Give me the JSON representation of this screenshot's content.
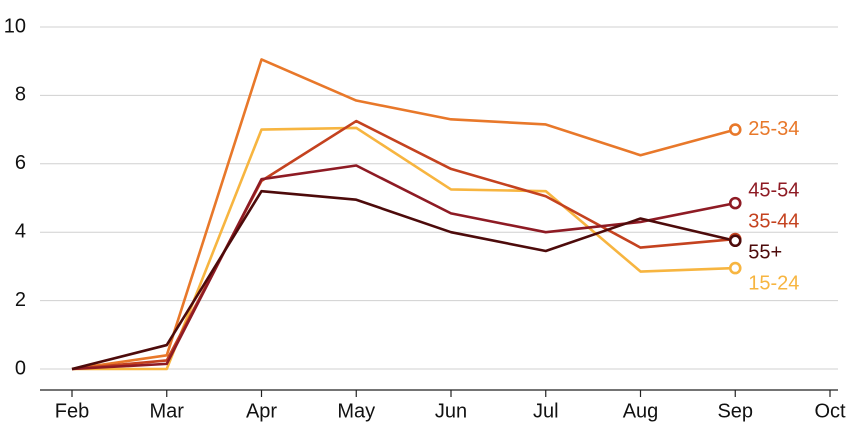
{
  "chart_data": {
    "type": "line",
    "categories": [
      "Feb",
      "Mar",
      "Apr",
      "May",
      "Jun",
      "Jul",
      "Aug",
      "Sep",
      "Oct"
    ],
    "series": [
      {
        "name": "25-34",
        "color": "#e8782a",
        "values": [
          0,
          0.4,
          9.05,
          7.85,
          7.3,
          7.15,
          6.25,
          7.0,
          null
        ]
      },
      {
        "name": "15-24",
        "color": "#f7b540",
        "values": [
          0,
          0,
          7.0,
          7.05,
          5.25,
          5.2,
          2.85,
          2.95,
          null
        ]
      },
      {
        "name": "35-44",
        "color": "#c4421f",
        "values": [
          0,
          0.25,
          5.5,
          7.25,
          5.85,
          5.05,
          3.55,
          3.8,
          null
        ]
      },
      {
        "name": "45-54",
        "color": "#8e1b24",
        "values": [
          0,
          0.15,
          5.55,
          5.95,
          4.55,
          4.0,
          4.3,
          4.85,
          null
        ]
      },
      {
        "name": "55+",
        "color": "#4d0b0b",
        "values": [
          0,
          0.7,
          5.2,
          4.95,
          4.0,
          3.45,
          4.4,
          3.75,
          null
        ]
      }
    ],
    "ylim": [
      0,
      10
    ],
    "yticks": [
      0,
      2,
      4,
      6,
      8,
      10
    ],
    "grid": true
  }
}
